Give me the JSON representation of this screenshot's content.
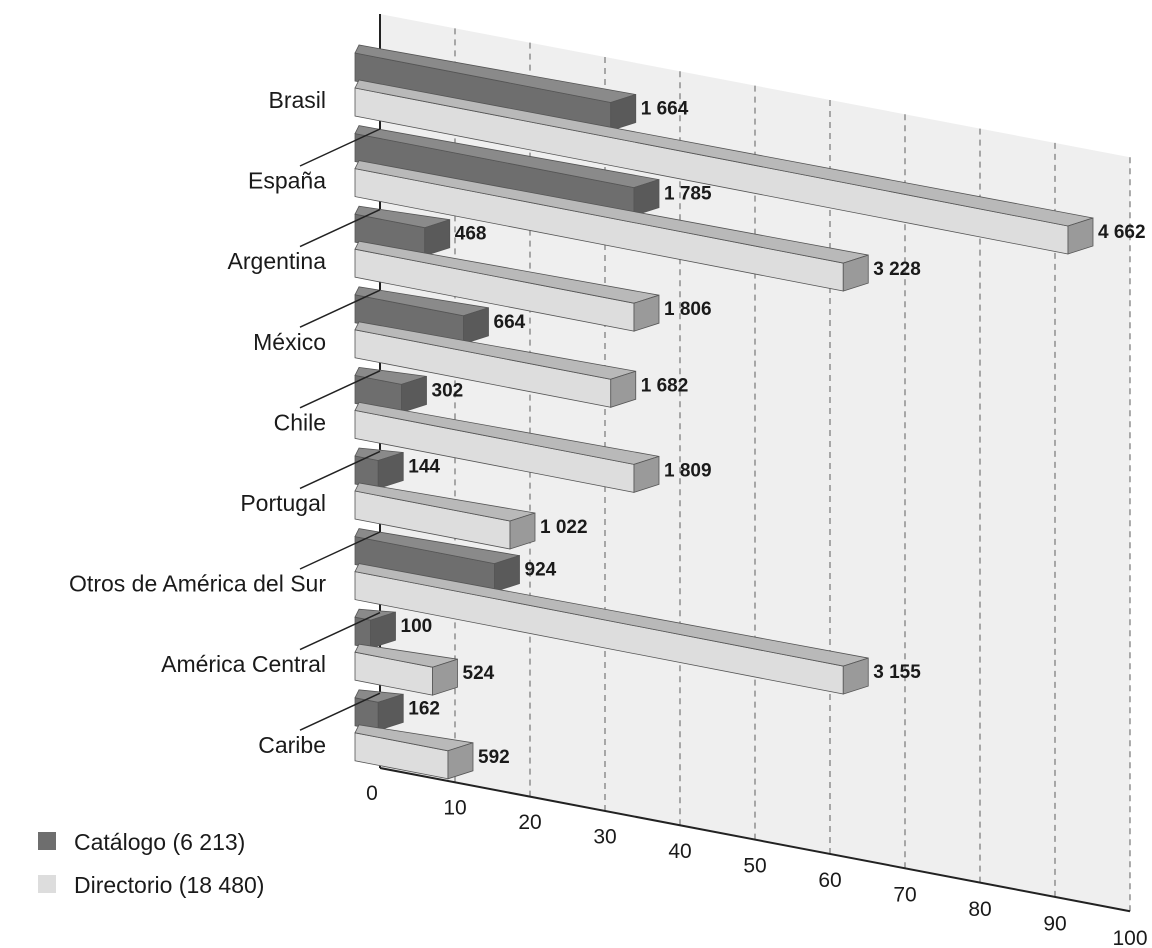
{
  "chart_data": {
    "type": "bar",
    "orientation": "horizontal",
    "categories": [
      "Brasil",
      "España",
      "Argentina",
      "México",
      "Chile",
      "Portugal",
      "Otros de América del Sur",
      "América Central",
      "Caribe"
    ],
    "series": [
      {
        "name": "Catálogo (6 213)",
        "values": [
          33,
          36,
          9,
          14,
          6,
          3,
          18,
          2,
          3
        ],
        "labels": [
          "1 664",
          "1 785",
          "468",
          "664",
          "302",
          "144",
          "924",
          "100",
          "162"
        ],
        "color": "#777777"
      },
      {
        "name": "Directorio (18 480)",
        "values": [
          92,
          63,
          36,
          33,
          36,
          20,
          63,
          10,
          12
        ],
        "labels": [
          "4 662",
          "3 228",
          "1 806",
          "1 682",
          "1 809",
          "1 022",
          "3 155",
          "524",
          "592"
        ],
        "color": "#dcdcdc"
      }
    ],
    "xticks": [
      "0",
      "10",
      "20",
      "30",
      "40",
      "50",
      "60",
      "70",
      "80",
      "90",
      "100"
    ],
    "xlim": [
      0,
      100
    ],
    "grid": true,
    "legend_position": "bottom-left",
    "style": "3d-perspective"
  }
}
